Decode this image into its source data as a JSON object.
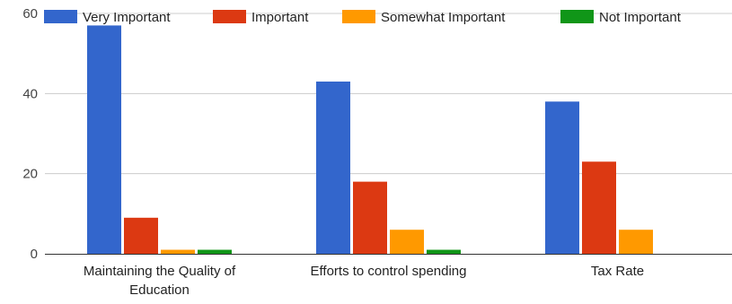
{
  "chart_data": {
    "type": "bar",
    "categories": [
      [
        "Maintaining the Quality of",
        "Education"
      ],
      [
        "Efforts to control spending"
      ],
      [
        "Tax Rate"
      ]
    ],
    "series": [
      {
        "name": "Very Important",
        "color": "#3366cc",
        "values": [
          57,
          43,
          38
        ]
      },
      {
        "name": "Important",
        "color": "#dc3912",
        "values": [
          9,
          18,
          23
        ]
      },
      {
        "name": "Somewhat Important",
        "color": "#ff9900",
        "values": [
          1,
          6,
          6
        ]
      },
      {
        "name": "Not Important",
        "color": "#109618",
        "values": [
          1,
          1,
          0
        ]
      }
    ],
    "yticks": [
      0,
      20,
      40,
      60
    ],
    "ylim": [
      0,
      60
    ],
    "grid": true,
    "legend_position": "top"
  }
}
